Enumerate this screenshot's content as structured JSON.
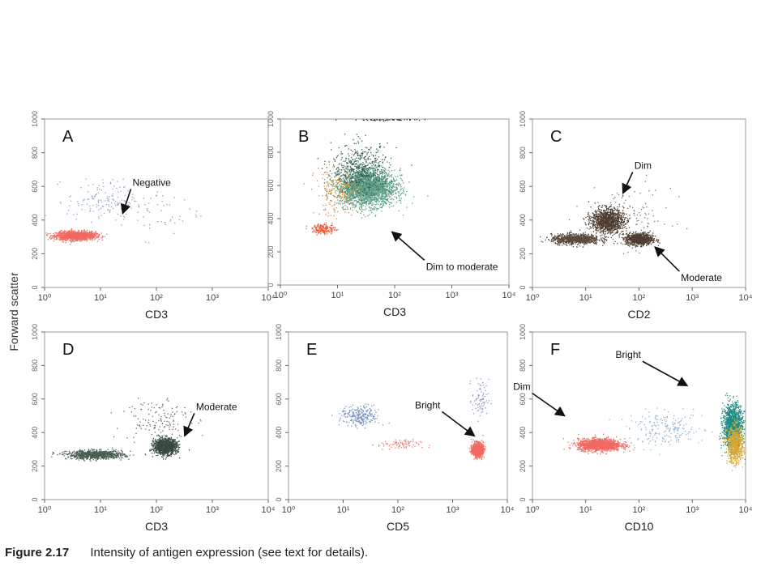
{
  "figure": {
    "caption_label": "Figure 2.17",
    "caption_text": "Intensity of antigen expression (see text for details).",
    "shared_ylabel": "Forward scatter"
  },
  "chart_data": [
    {
      "type": "scatter",
      "panel": "A",
      "xlabel": "CD3",
      "xscale": "log",
      "xlim": [
        1,
        10000
      ],
      "ylim": [
        0,
        1000
      ],
      "xticks": [
        "10⁰",
        "10¹",
        "10²",
        "10³",
        "10⁴"
      ],
      "yticks": [
        "0",
        "200",
        "400",
        "600",
        "800",
        "1000"
      ],
      "populations": [
        {
          "color": "#f06a62",
          "x_log_center": 0.55,
          "x_log_spread": 0.35,
          "y_center": 310,
          "y_spread": 25,
          "count": 1500
        },
        {
          "color": "#8aa6c8",
          "x_log_center": 1.0,
          "x_log_spread": 0.6,
          "y_center": 520,
          "y_spread": 120,
          "count": 140
        },
        {
          "color": "#9a9a9a",
          "x_log_center": 2.0,
          "x_log_spread": 0.8,
          "y_center": 450,
          "y_spread": 150,
          "count": 60
        }
      ],
      "annotations": [
        {
          "text": "Negative",
          "x": 25,
          "y": 440
        }
      ]
    },
    {
      "type": "scatter",
      "panel": "B",
      "xlabel": "CD3",
      "xscale": "log",
      "xlim": [
        1,
        10000
      ],
      "ylim": [
        0,
        1000
      ],
      "xticks": [
        "10⁰",
        "10¹",
        "10²",
        "10³",
        "10⁴"
      ],
      "yticks": [
        "0",
        "200",
        "400",
        "600",
        "800",
        "1000"
      ],
      "populations": [
        {
          "color": "#5e9e86",
          "x_log_center": 1.5,
          "x_log_spread": 0.5,
          "y_center": 590,
          "y_spread": 110,
          "count": 2600
        },
        {
          "color": "#2f5e52",
          "x_log_center": 1.4,
          "x_log_spread": 0.5,
          "y_center": 700,
          "y_spread": 150,
          "count": 500
        },
        {
          "color": "#d98f3a",
          "x_log_center": 1.0,
          "x_log_spread": 0.4,
          "y_center": 560,
          "y_spread": 140,
          "count": 200
        },
        {
          "color": "#e85a3a",
          "x_log_center": 0.75,
          "x_log_spread": 0.2,
          "y_center": 340,
          "y_spread": 30,
          "count": 180
        },
        {
          "color": "#2b3b35",
          "x_log_center": 1.9,
          "x_log_spread": 0.6,
          "y_center": 1000,
          "y_spread": 6,
          "count": 120
        }
      ],
      "annotations": [
        {
          "text": "Dim to moderate",
          "x": 90,
          "y": 320
        }
      ]
    },
    {
      "type": "scatter",
      "panel": "C",
      "xlabel": "CD2",
      "xscale": "log",
      "xlim": [
        1,
        10000
      ],
      "ylim": [
        0,
        1000
      ],
      "xticks": [
        "10⁰",
        "10¹",
        "10²",
        "10³",
        "10⁴"
      ],
      "yticks": [
        "0",
        "200",
        "400",
        "600",
        "800",
        "1000"
      ],
      "populations": [
        {
          "color": "#4e3d30",
          "x_log_center": 1.4,
          "x_log_spread": 0.3,
          "y_center": 400,
          "y_spread": 70,
          "count": 1200
        },
        {
          "color": "#4e3d30",
          "x_log_center": 2.0,
          "x_log_spread": 0.25,
          "y_center": 290,
          "y_spread": 35,
          "count": 900
        },
        {
          "color": "#5a4a3c",
          "x_log_center": 0.8,
          "x_log_spread": 0.45,
          "y_center": 290,
          "y_spread": 30,
          "count": 900
        },
        {
          "color": "#7a7a7a",
          "x_log_center": 1.8,
          "x_log_spread": 0.8,
          "y_center": 420,
          "y_spread": 180,
          "count": 120
        }
      ],
      "annotations": [
        {
          "text": "Dim",
          "x": 50,
          "y": 560
        },
        {
          "text": "Moderate",
          "x": 200,
          "y": 240
        }
      ]
    },
    {
      "type": "scatter",
      "panel": "D",
      "xlabel": "CD3",
      "xscale": "log",
      "xlim": [
        1,
        10000
      ],
      "ylim": [
        0,
        1000
      ],
      "xticks": [
        "10⁰",
        "10¹",
        "10²",
        "10³",
        "10⁴"
      ],
      "yticks": [
        "0",
        "200",
        "400",
        "600",
        "800",
        "1000"
      ],
      "populations": [
        {
          "color": "#364a3e",
          "x_log_center": 2.15,
          "x_log_spread": 0.2,
          "y_center": 320,
          "y_spread": 45,
          "count": 1300
        },
        {
          "color": "#4a5e52",
          "x_log_center": 0.9,
          "x_log_spread": 0.5,
          "y_center": 270,
          "y_spread": 25,
          "count": 900
        },
        {
          "color": "#6a6a6a",
          "x_log_center": 2.0,
          "x_log_spread": 0.6,
          "y_center": 480,
          "y_spread": 160,
          "count": 150
        }
      ],
      "annotations": [
        {
          "text": "Moderate",
          "x": 320,
          "y": 380
        }
      ]
    },
    {
      "type": "scatter",
      "panel": "E",
      "xlabel": "CD5",
      "xscale": "log",
      "xlim": [
        1,
        10000
      ],
      "ylim": [
        0,
        1000
      ],
      "xticks": [
        "10⁰",
        "10¹",
        "10²",
        "10³",
        "10⁴"
      ],
      "yticks": [
        "0",
        "200",
        "400",
        "600",
        "800",
        "1000"
      ],
      "populations": [
        {
          "color": "#f06a62",
          "x_log_center": 3.45,
          "x_log_spread": 0.1,
          "y_center": 300,
          "y_spread": 40,
          "count": 900
        },
        {
          "color": "#7b95c0",
          "x_log_center": 1.3,
          "x_log_spread": 0.35,
          "y_center": 500,
          "y_spread": 60,
          "count": 260
        },
        {
          "color": "#f07a6a",
          "x_log_center": 2.0,
          "x_log_spread": 0.4,
          "y_center": 330,
          "y_spread": 30,
          "count": 80
        },
        {
          "color": "#8c9cc8",
          "x_log_center": 3.5,
          "x_log_spread": 0.15,
          "y_center": 600,
          "y_spread": 120,
          "count": 80
        }
      ],
      "annotations": [
        {
          "text": "Bright",
          "x": 2500,
          "y": 380
        }
      ]
    },
    {
      "type": "scatter",
      "panel": "F",
      "xlabel": "CD10",
      "xscale": "log",
      "xlim": [
        1,
        10000
      ],
      "ylim": [
        0,
        1000
      ],
      "xticks": [
        "10⁰",
        "10¹",
        "10²",
        "10³",
        "10⁴"
      ],
      "yticks": [
        "0",
        "200",
        "400",
        "600",
        "800",
        "1000"
      ],
      "populations": [
        {
          "color": "#f06a62",
          "x_log_center": 1.25,
          "x_log_spread": 0.4,
          "y_center": 330,
          "y_spread": 35,
          "count": 1500
        },
        {
          "color": "#1f8a84",
          "x_log_center": 3.75,
          "x_log_spread": 0.18,
          "y_center": 440,
          "y_spread": 130,
          "count": 1300
        },
        {
          "color": "#d9a832",
          "x_log_center": 3.8,
          "x_log_spread": 0.15,
          "y_center": 330,
          "y_spread": 110,
          "count": 700
        },
        {
          "color": "#8cb4d0",
          "x_log_center": 2.5,
          "x_log_spread": 0.7,
          "y_center": 420,
          "y_spread": 100,
          "count": 200
        }
      ],
      "annotations": [
        {
          "text": "Dim",
          "x": 4,
          "y": 500
        },
        {
          "text": "Bright",
          "x": 800,
          "y": 680
        }
      ]
    }
  ]
}
